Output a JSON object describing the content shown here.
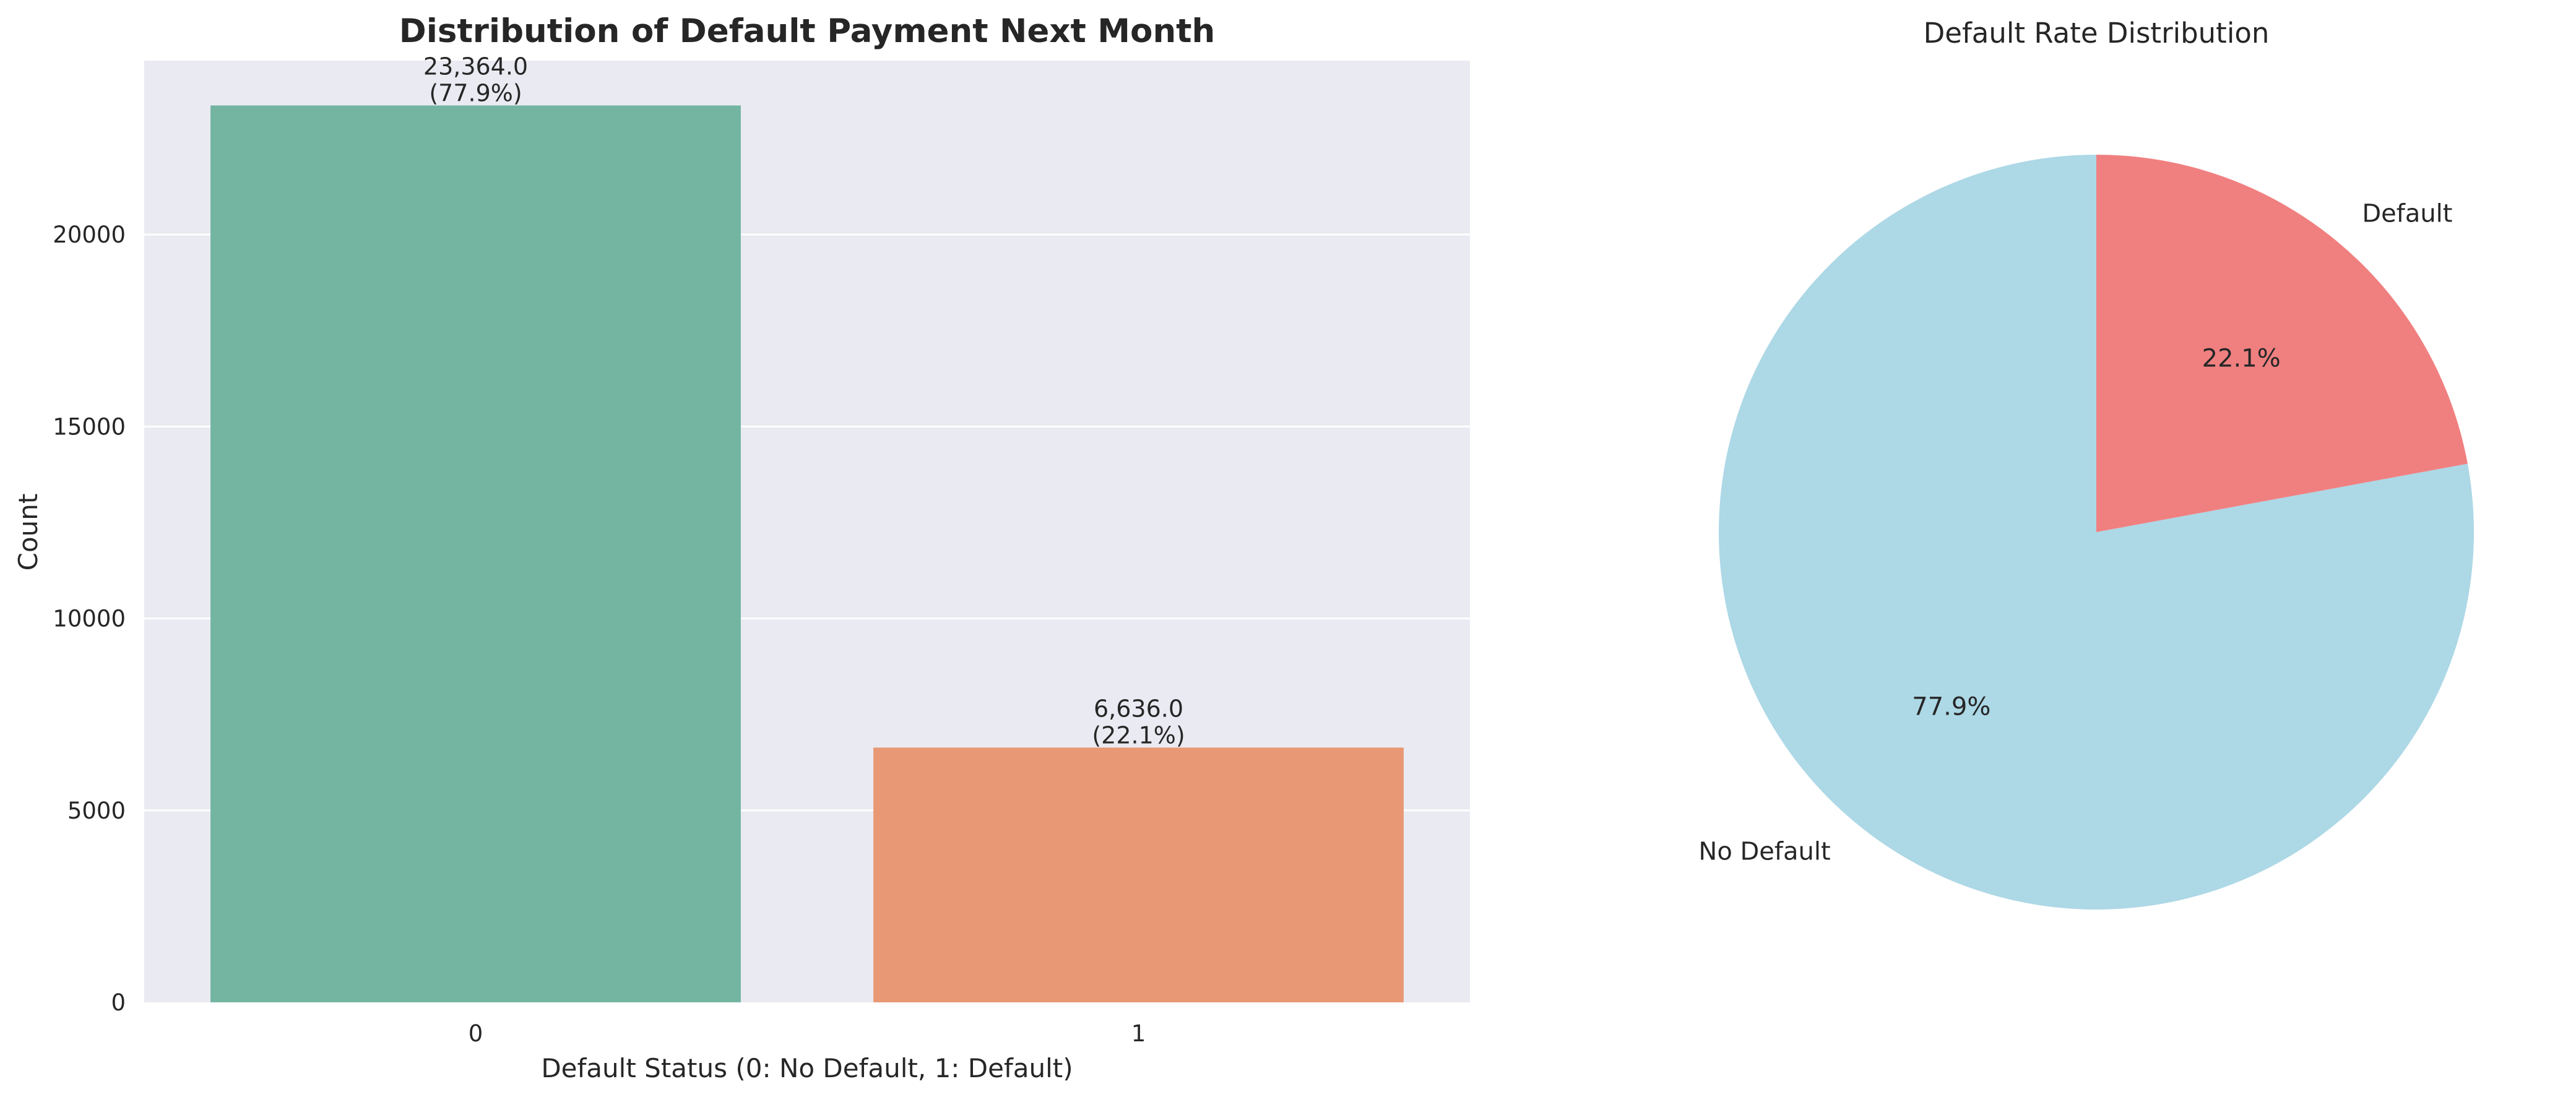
{
  "chart_data": [
    {
      "type": "bar",
      "title": "Distribution of Default Payment Next Month",
      "xlabel": "Default Status (0: No Default, 1: Default)",
      "ylabel": "Count",
      "categories": [
        "0",
        "1"
      ],
      "values": [
        23364,
        6636
      ],
      "bar_labels": [
        {
          "count": "23,364.0",
          "percent": "(77.9%)"
        },
        {
          "count": "6,636.0",
          "percent": "(22.1%)"
        }
      ],
      "colors": [
        "#73b5a1",
        "#e89874"
      ],
      "yticks": [
        0,
        5000,
        10000,
        15000,
        20000
      ],
      "ylim": [
        0,
        24532
      ],
      "grid": true,
      "background": "#eaeaf2"
    },
    {
      "type": "pie",
      "title": "Default Rate Distribution",
      "labels": [
        "No Default",
        "Default"
      ],
      "values": [
        77.9,
        22.1
      ],
      "percent_labels": [
        "77.9%",
        "22.1%"
      ],
      "colors": [
        "#add8e6",
        "#f08080"
      ],
      "start_angle_deg": 90
    }
  ]
}
